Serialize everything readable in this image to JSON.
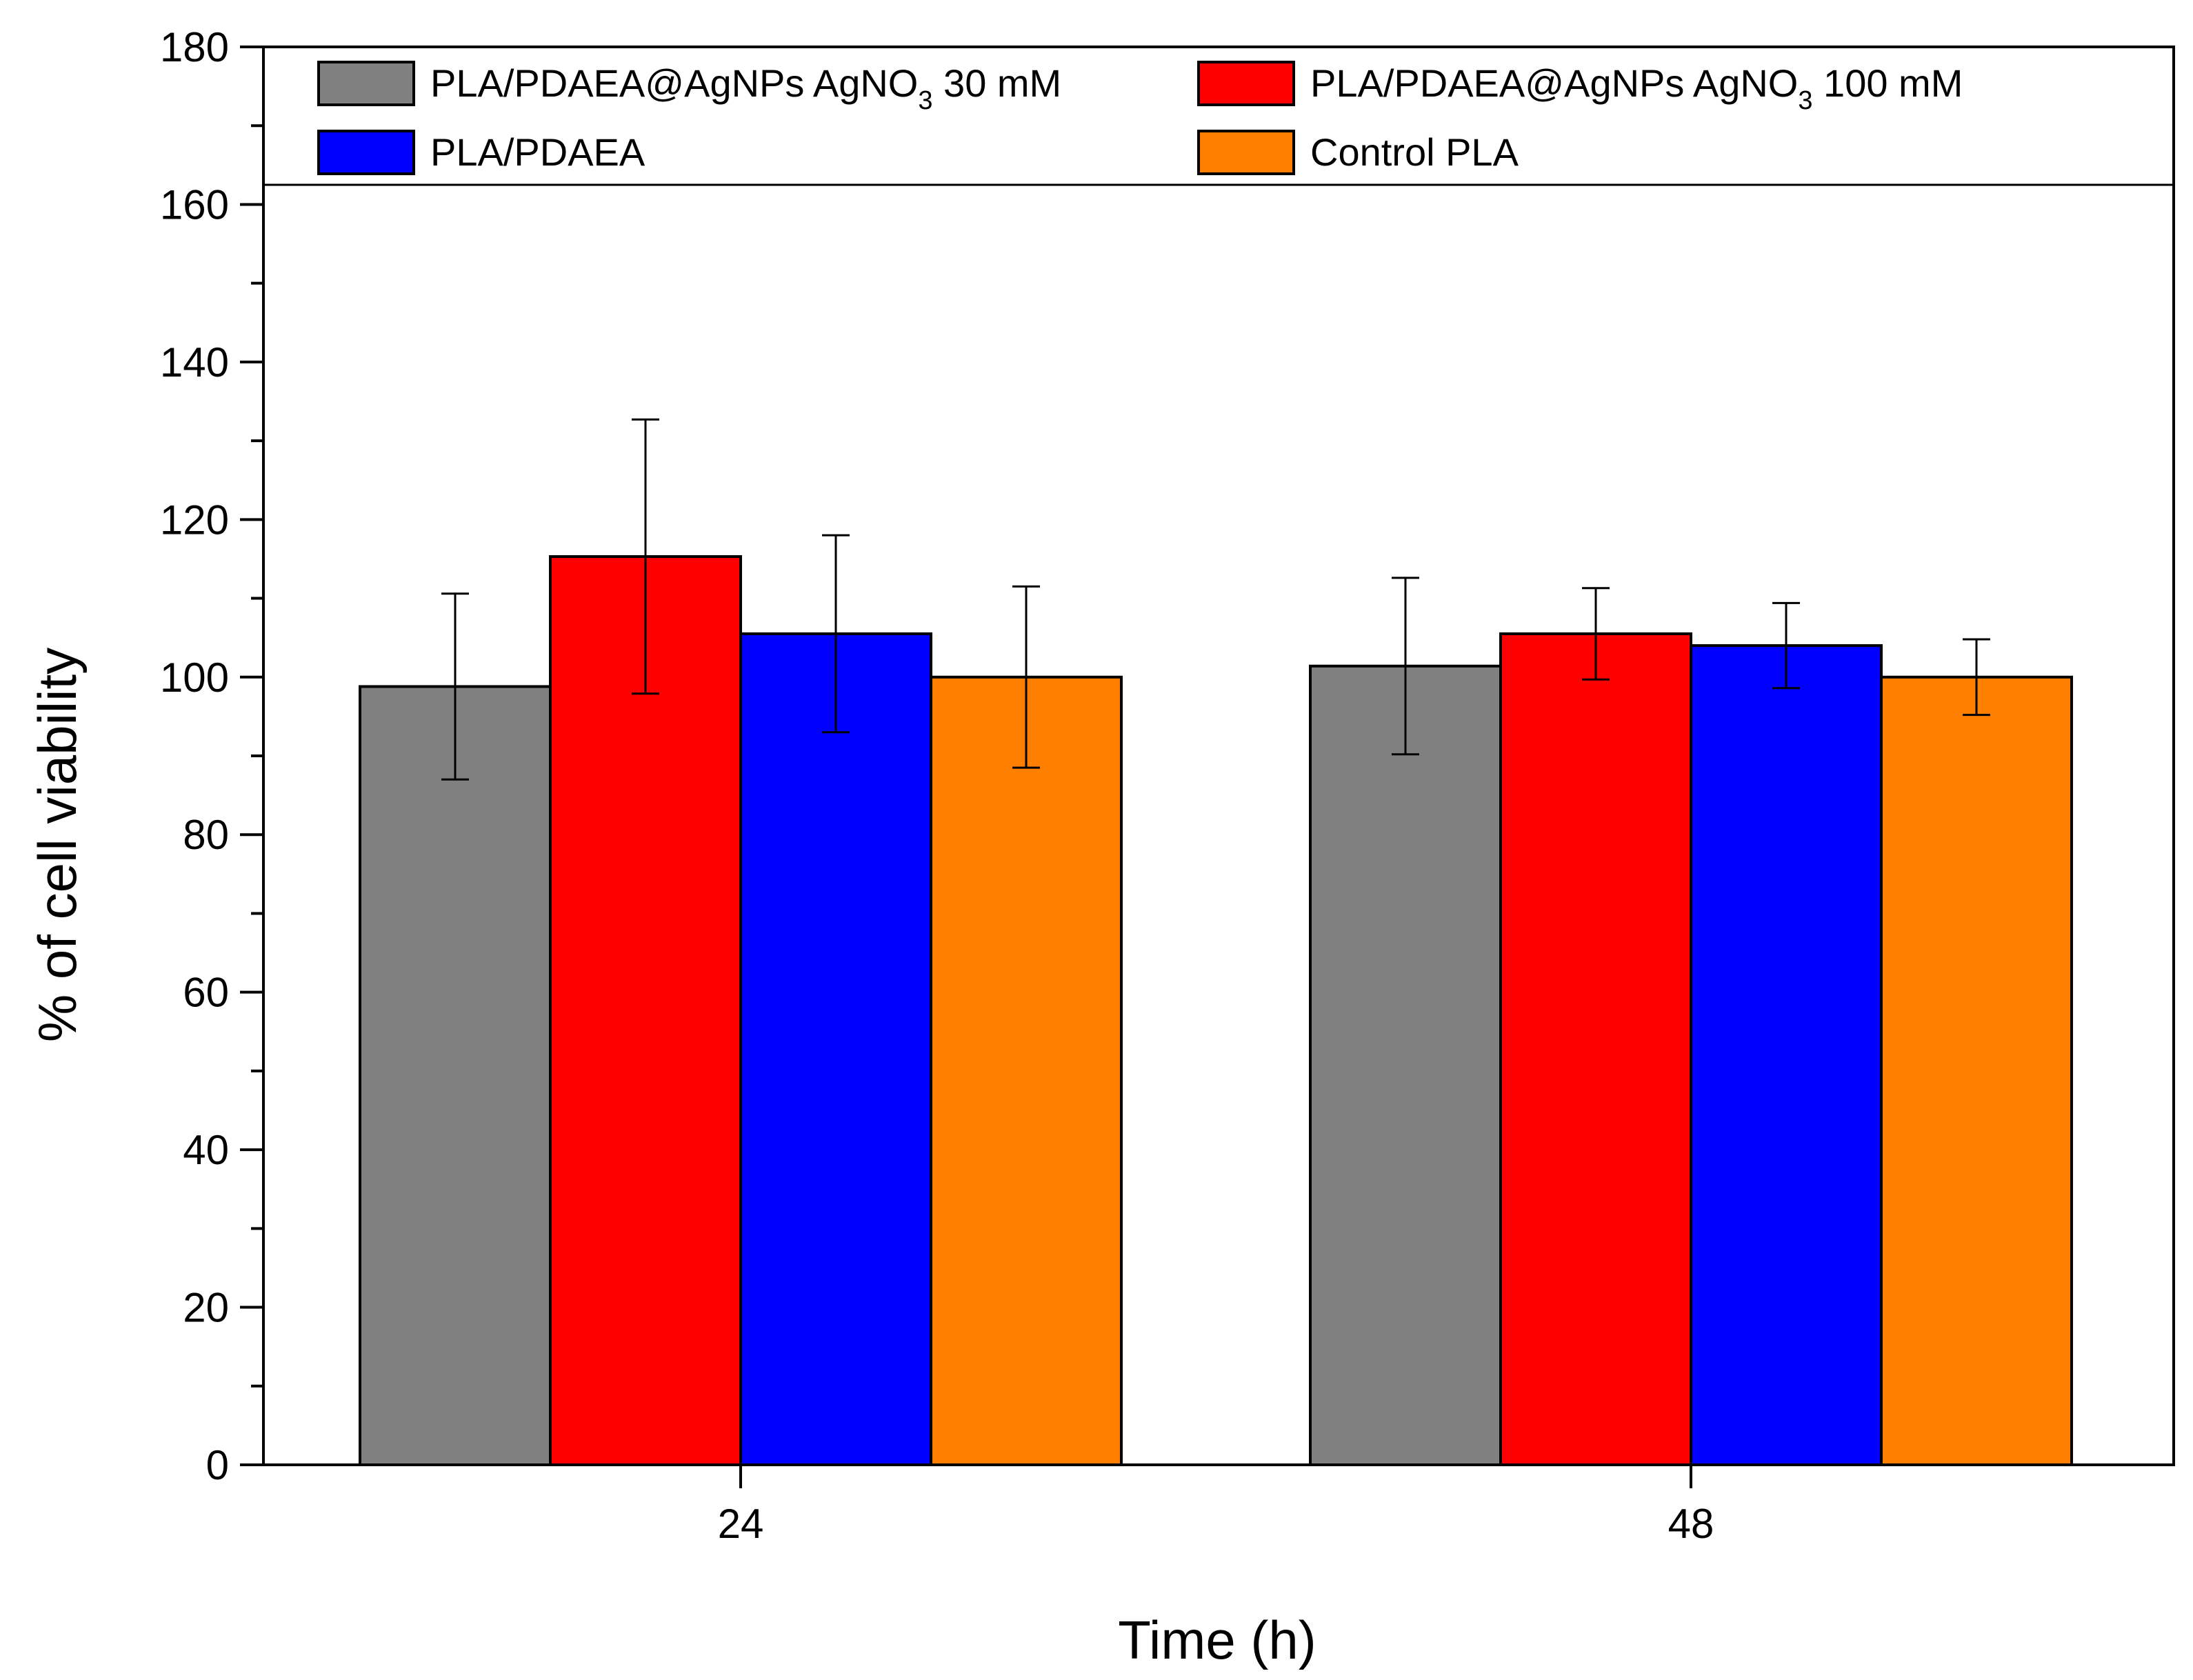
{
  "chart_data": {
    "type": "bar",
    "title": "",
    "xlabel": "Time (h)",
    "ylabel": "% of cell viability",
    "categories": [
      "24",
      "48"
    ],
    "ylim": [
      0,
      180
    ],
    "yticks": [
      0,
      20,
      40,
      60,
      80,
      100,
      120,
      140,
      160,
      180
    ],
    "grid": false,
    "legend_position": "top",
    "series": [
      {
        "name": "PLA/PDAEA@AgNPs AgNO3 30 mM",
        "label_main": "PLA/PDAEA@AgNPs AgNO",
        "label_sub": "3",
        "label_tail": " 30 mM",
        "color": "#808080",
        "values": [
          98.8,
          101.4
        ],
        "errors": [
          11.8,
          11.2
        ]
      },
      {
        "name": "PLA/PDAEA@AgNPs AgNO3 100 mM",
        "label_main": "PLA/PDAEA@AgNPs AgNO",
        "label_sub": "3",
        "label_tail": " 100 mM",
        "color": "#ff0000",
        "values": [
          115.3,
          105.5
        ],
        "errors": [
          17.4,
          5.8
        ]
      },
      {
        "name": "PLA/PDAEA",
        "label_main": "PLA/PDAEA",
        "label_sub": "",
        "label_tail": "",
        "color": "#0000ff",
        "values": [
          105.5,
          104.0
        ],
        "errors": [
          12.5,
          5.4
        ]
      },
      {
        "name": "Control PLA",
        "label_main": "Control PLA",
        "label_sub": "",
        "label_tail": "",
        "color": "#ff8000",
        "values": [
          100.0,
          100.0
        ],
        "errors": [
          11.5,
          4.8
        ]
      }
    ]
  }
}
